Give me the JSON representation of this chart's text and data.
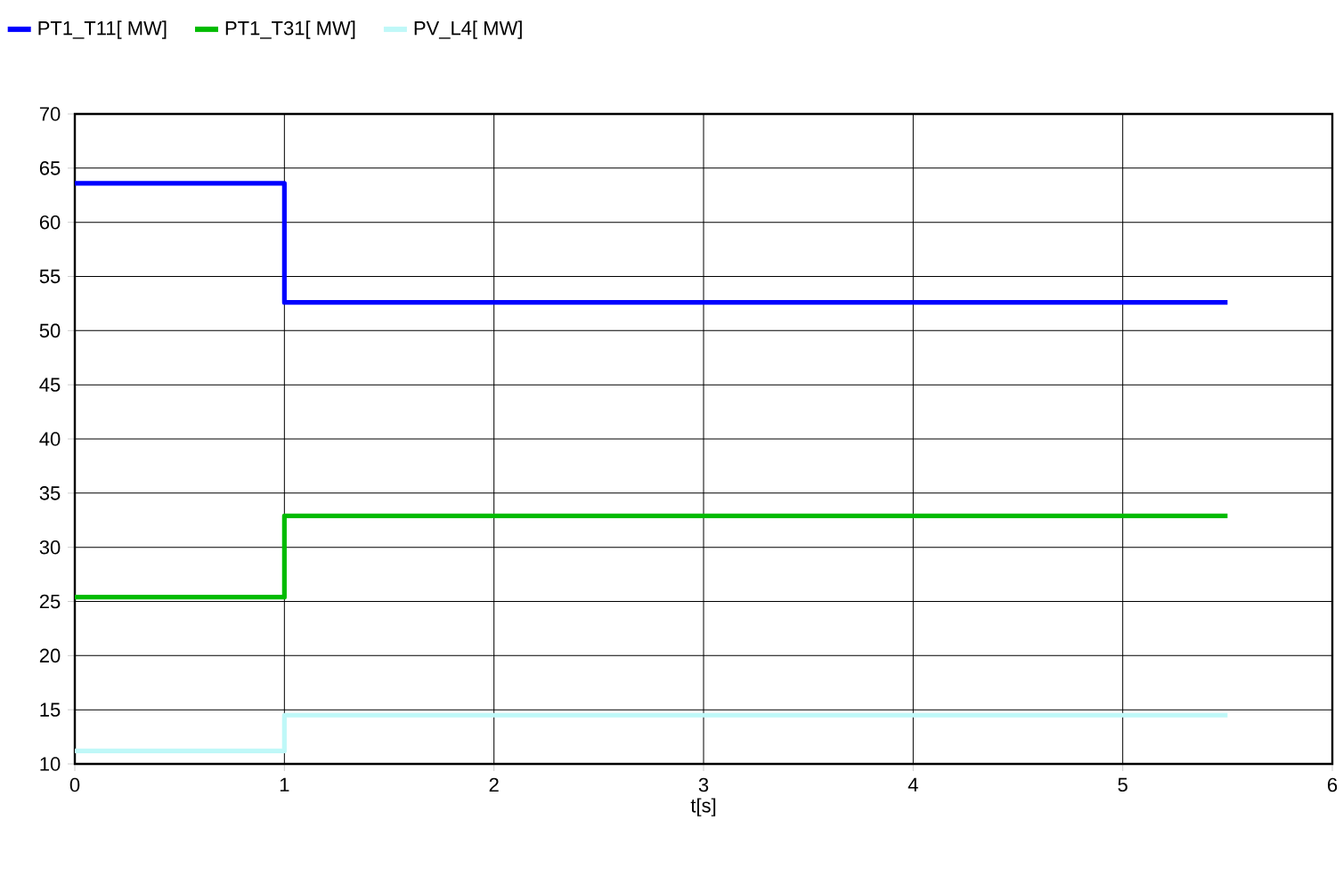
{
  "chart_data": {
    "type": "step",
    "xlabel": "t[s]",
    "x": [
      0,
      1,
      5.5
    ],
    "series": [
      {
        "name": "PT1_T11[ MW]",
        "color": "#0000ff",
        "values": [
          63.6,
          52.6,
          52.6
        ]
      },
      {
        "name": "PT1_T31[ MW]",
        "color": "#00bb00",
        "values": [
          25.4,
          32.9,
          32.9
        ]
      },
      {
        "name": "PV_L4[ MW]",
        "color": "#bff8f8",
        "values": [
          11.2,
          14.5,
          14.5
        ]
      }
    ],
    "xlim": [
      0,
      6
    ],
    "xticks": [
      0,
      1,
      2,
      3,
      4,
      5,
      6
    ],
    "ylim": [
      10,
      70
    ],
    "yticks": [
      10,
      15,
      20,
      25,
      30,
      35,
      40,
      45,
      50,
      55,
      60,
      65,
      70
    ],
    "grid": true,
    "legend": "top left",
    "marker": "none",
    "line_style": "solid"
  }
}
